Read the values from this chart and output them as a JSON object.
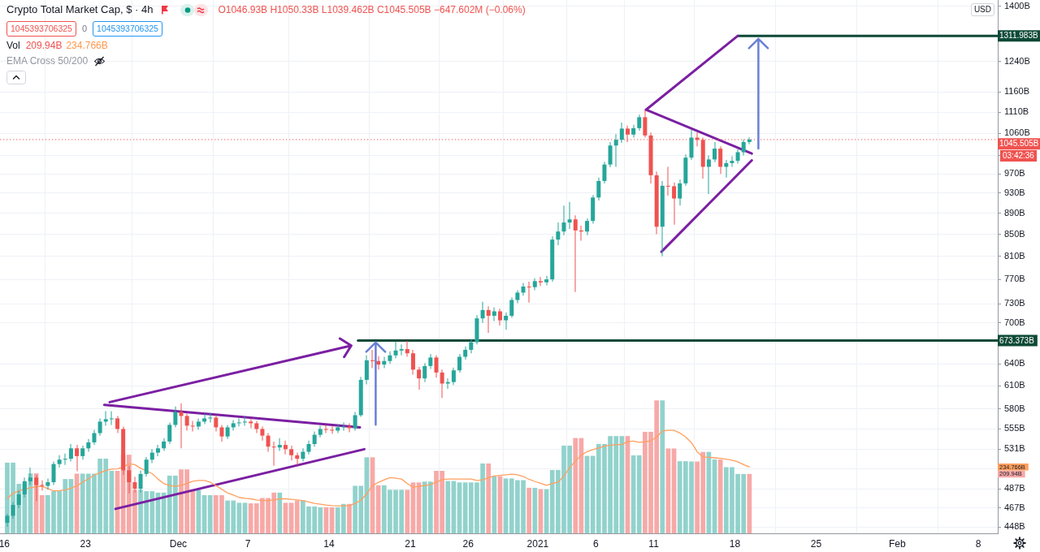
{
  "chart_data": {
    "type": "candlestick",
    "title": "Crypto Total Market Cap, $ · 4h",
    "subtitle": "O1046.93B H1050.33B L1039.462B C1045.505B −647.602M (−0.06%)",
    "x": [
      "2020-11-16T06:00",
      "2020-11-16T18:00",
      "2020-11-17T06:00",
      "2020-11-17T18:00",
      "2020-11-18T06:00",
      "2020-11-18T18:00",
      "2020-11-19T06:00",
      "2020-11-19T18:00",
      "2020-11-20T06:00",
      "2020-11-20T18:00",
      "2020-11-21T06:00",
      "2020-11-21T18:00",
      "2020-11-22T06:00",
      "2020-11-22T18:00",
      "2020-11-23T06:00",
      "2020-11-23T18:00",
      "2020-11-24T06:00",
      "2020-11-24T18:00",
      "2020-11-25T06:00",
      "2020-11-25T18:00",
      "2020-11-26T06:00",
      "2020-11-26T18:00",
      "2020-11-27T06:00",
      "2020-11-27T18:00",
      "2020-11-28T06:00",
      "2020-11-28T18:00",
      "2020-11-29T06:00",
      "2020-11-29T18:00",
      "2020-11-30T06:00",
      "2020-11-30T18:00",
      "2020-12-01T06:00",
      "2020-12-01T18:00",
      "2020-12-02T06:00",
      "2020-12-02T18:00",
      "2020-12-03T06:00",
      "2020-12-03T18:00",
      "2020-12-04T06:00",
      "2020-12-04T18:00",
      "2020-12-05T06:00",
      "2020-12-05T18:00",
      "2020-12-06T06:00",
      "2020-12-06T18:00",
      "2020-12-07T06:00",
      "2020-12-07T18:00",
      "2020-12-08T06:00",
      "2020-12-08T18:00",
      "2020-12-09T06:00",
      "2020-12-09T18:00",
      "2020-12-10T06:00",
      "2020-12-10T18:00",
      "2020-12-11T06:00",
      "2020-12-11T18:00",
      "2020-12-12T06:00",
      "2020-12-12T18:00",
      "2020-12-13T06:00",
      "2020-12-13T18:00",
      "2020-12-14T06:00",
      "2020-12-14T18:00",
      "2020-12-15T06:00",
      "2020-12-15T18:00",
      "2020-12-16T06:00",
      "2020-12-16T18:00",
      "2020-12-17T06:00",
      "2020-12-17T18:00",
      "2020-12-18T06:00",
      "2020-12-18T18:00",
      "2020-12-19T06:00",
      "2020-12-19T18:00",
      "2020-12-20T06:00",
      "2020-12-20T18:00",
      "2020-12-21T06:00",
      "2020-12-21T18:00",
      "2020-12-22T06:00",
      "2020-12-22T18:00",
      "2020-12-23T06:00",
      "2020-12-23T18:00",
      "2020-12-24T06:00",
      "2020-12-24T18:00",
      "2020-12-25T06:00",
      "2020-12-25T18:00",
      "2020-12-26T06:00",
      "2020-12-26T18:00",
      "2020-12-27T06:00",
      "2020-12-27T18:00",
      "2020-12-28T06:00",
      "2020-12-28T18:00",
      "2020-12-29T06:00",
      "2020-12-29T18:00",
      "2020-12-30T06:00",
      "2020-12-30T18:00",
      "2020-12-31T06:00",
      "2020-12-31T18:00",
      "2021-01-01T06:00",
      "2021-01-01T18:00",
      "2021-01-02T06:00",
      "2021-01-02T18:00",
      "2021-01-03T06:00",
      "2021-01-03T18:00",
      "2021-01-04T06:00",
      "2021-01-04T18:00",
      "2021-01-05T06:00",
      "2021-01-05T18:00",
      "2021-01-06T06:00",
      "2021-01-06T18:00",
      "2021-01-07T06:00",
      "2021-01-07T18:00",
      "2021-01-08T06:00",
      "2021-01-08T18:00",
      "2021-01-09T06:00",
      "2021-01-09T18:00",
      "2021-01-10T06:00",
      "2021-01-10T18:00",
      "2021-01-11T06:00",
      "2021-01-11T18:00",
      "2021-01-12T06:00",
      "2021-01-12T18:00",
      "2021-01-13T06:00",
      "2021-01-13T18:00",
      "2021-01-14T06:00",
      "2021-01-14T18:00",
      "2021-01-15T06:00",
      "2021-01-15T18:00",
      "2021-01-16T06:00",
      "2021-01-16T18:00",
      "2021-01-17T06:00",
      "2021-01-17T18:00",
      "2021-01-18T06:00",
      "2021-01-18T18:00",
      "2021-01-19T06:00"
    ],
    "xlim": [
      "2020-11-15T15:00",
      "2021-02-09T16:00"
    ],
    "xticks": [
      {
        "value": "2020-11-16",
        "label": "16"
      },
      {
        "value": "2020-11-23",
        "label": "23"
      },
      {
        "value": "2020-12-01",
        "label": "Dec"
      },
      {
        "value": "2020-12-07",
        "label": "7"
      },
      {
        "value": "2020-12-14",
        "label": "14"
      },
      {
        "value": "2020-12-21",
        "label": "21"
      },
      {
        "value": "2020-12-26",
        "label": "26"
      },
      {
        "value": "2021-01-01",
        "label": "2021"
      },
      {
        "value": "2021-01-06",
        "label": "6"
      },
      {
        "value": "2021-01-11",
        "label": "11"
      },
      {
        "value": "2021-01-18",
        "label": "18"
      },
      {
        "value": "2021-01-25",
        "label": "25"
      },
      {
        "value": "2021-02-01",
        "label": "Feb"
      },
      {
        "value": "2021-02-08",
        "label": "8"
      }
    ],
    "ylim": [
      441.7,
      1419
    ],
    "yticks": [
      {
        "value": 448,
        "label": "448B"
      },
      {
        "value": 467,
        "label": "467B"
      },
      {
        "value": 487,
        "label": "487B"
      },
      {
        "value": 509,
        "label": null
      },
      {
        "value": 531,
        "label": "531B"
      },
      {
        "value": 555,
        "label": "555B"
      },
      {
        "value": 580,
        "label": "580B"
      },
      {
        "value": 610,
        "label": "610B"
      },
      {
        "value": 640,
        "label": "640B"
      },
      {
        "value": 700,
        "label": "700B"
      },
      {
        "value": 730,
        "label": "730B"
      },
      {
        "value": 770,
        "label": "770B"
      },
      {
        "value": 810,
        "label": "810B"
      },
      {
        "value": 850,
        "label": "850B"
      },
      {
        "value": 890,
        "label": "890B"
      },
      {
        "value": 930,
        "label": "930B"
      },
      {
        "value": 970,
        "label": "970B"
      },
      {
        "value": 1010,
        "label": null
      },
      {
        "value": 1060,
        "label": "1060B"
      },
      {
        "value": 1110,
        "label": "1110B"
      },
      {
        "value": 1160,
        "label": "1160B"
      },
      {
        "value": 1240,
        "label": "1240B"
      },
      {
        "value": 1400,
        "label": "1400B"
      }
    ],
    "y2lim": [
      0,
      1886
    ],
    "y2ticks": [
      {
        "value": 209.94,
        "label": "209.94B"
      },
      {
        "value": 234.766,
        "label": "234.766B"
      }
    ],
    "log": true,
    "grid": true,
    "series": [
      {
        "ohlc": [
          [
            452,
            461,
            448,
            459
          ],
          [
            459,
            473,
            456,
            470
          ],
          [
            470,
            485,
            467,
            481
          ],
          [
            481,
            499,
            478,
            495
          ],
          [
            495,
            510,
            491,
            499
          ],
          [
            499,
            502,
            474,
            491
          ],
          [
            491,
            496,
            485,
            490
          ],
          [
            490,
            498,
            486,
            494
          ],
          [
            494,
            517,
            491,
            514
          ],
          [
            514,
            524,
            510,
            519
          ],
          [
            519,
            526,
            513,
            520
          ],
          [
            520,
            537,
            517,
            532
          ],
          [
            532,
            536,
            506,
            523
          ],
          [
            523,
            535,
            519,
            532
          ],
          [
            532,
            543,
            528,
            539
          ],
          [
            539,
            554,
            536,
            550
          ],
          [
            550,
            568,
            547,
            564
          ],
          [
            564,
            577,
            559,
            567
          ],
          [
            567,
            577,
            560,
            568
          ],
          [
            568,
            571,
            550,
            555
          ],
          [
            555,
            558,
            502,
            507
          ],
          [
            507,
            512,
            482,
            494
          ],
          [
            494,
            500,
            483,
            487
          ],
          [
            487,
            507,
            483,
            503
          ],
          [
            503,
            522,
            500,
            519
          ],
          [
            519,
            531,
            515,
            527
          ],
          [
            527,
            536,
            523,
            532
          ],
          [
            532,
            544,
            529,
            540
          ],
          [
            540,
            563,
            537,
            560
          ],
          [
            560,
            583,
            557,
            576
          ],
          [
            576,
            587,
            532,
            571
          ],
          [
            571,
            574,
            553,
            559
          ],
          [
            559,
            565,
            552,
            558
          ],
          [
            558,
            568,
            554,
            564
          ],
          [
            564,
            574,
            561,
            568
          ],
          [
            568,
            575,
            563,
            569
          ],
          [
            569,
            572,
            552,
            557
          ],
          [
            557,
            560,
            540,
            546
          ],
          [
            546,
            560,
            543,
            557
          ],
          [
            557,
            566,
            553,
            562
          ],
          [
            562,
            568,
            558,
            563
          ],
          [
            563,
            570,
            559,
            564
          ],
          [
            564,
            568,
            556,
            562
          ],
          [
            562,
            565,
            550,
            555
          ],
          [
            555,
            558,
            541,
            547
          ],
          [
            547,
            550,
            528,
            534
          ],
          [
            534,
            540,
            512,
            533
          ],
          [
            533,
            544,
            529,
            536
          ],
          [
            536,
            541,
            525,
            531
          ],
          [
            531,
            535,
            518,
            524
          ],
          [
            524,
            527,
            513,
            520
          ],
          [
            520,
            532,
            517,
            528
          ],
          [
            528,
            541,
            525,
            537
          ],
          [
            537,
            552,
            534,
            548
          ],
          [
            548,
            559,
            545,
            555
          ],
          [
            555,
            560,
            550,
            554
          ],
          [
            554,
            559,
            549,
            553
          ],
          [
            553,
            561,
            550,
            557
          ],
          [
            557,
            563,
            553,
            558
          ],
          [
            558,
            562,
            551,
            556
          ],
          [
            556,
            576,
            553,
            572
          ],
          [
            572,
            622,
            570,
            618
          ],
          [
            618,
            652,
            612,
            645
          ],
          [
            645,
            660,
            634,
            644
          ],
          [
            644,
            651,
            632,
            639
          ],
          [
            639,
            650,
            634,
            644
          ],
          [
            644,
            658,
            640,
            652
          ],
          [
            652,
            672,
            648,
            659
          ],
          [
            659,
            668,
            652,
            661
          ],
          [
            661,
            673,
            650,
            655
          ],
          [
            655,
            660,
            625,
            632
          ],
          [
            632,
            636,
            605,
            620
          ],
          [
            620,
            641,
            615,
            637
          ],
          [
            637,
            654,
            633,
            649
          ],
          [
            649,
            652,
            621,
            628
          ],
          [
            628,
            632,
            594,
            613
          ],
          [
            613,
            620,
            606,
            615
          ],
          [
            615,
            635,
            611,
            631
          ],
          [
            631,
            654,
            628,
            650
          ],
          [
            650,
            665,
            646,
            660
          ],
          [
            660,
            676,
            655,
            671
          ],
          [
            671,
            712,
            668,
            707
          ],
          [
            707,
            733,
            700,
            720
          ],
          [
            720,
            726,
            685,
            711
          ],
          [
            711,
            724,
            703,
            718
          ],
          [
            718,
            722,
            696,
            704
          ],
          [
            704,
            716,
            690,
            711
          ],
          [
            711,
            740,
            708,
            736
          ],
          [
            736,
            752,
            731,
            748
          ],
          [
            748,
            764,
            743,
            758
          ],
          [
            758,
            766,
            732,
            757
          ],
          [
            757,
            772,
            752,
            767
          ],
          [
            767,
            774,
            759,
            765
          ],
          [
            765,
            776,
            760,
            770
          ],
          [
            770,
            846,
            766,
            840
          ],
          [
            840,
            872,
            830,
            855
          ],
          [
            855,
            905,
            848,
            872
          ],
          [
            872,
            912,
            860,
            878
          ],
          [
            878,
            886,
            749,
            857
          ],
          [
            857,
            866,
            838,
            855
          ],
          [
            855,
            880,
            848,
            875
          ],
          [
            875,
            926,
            870,
            921
          ],
          [
            921,
            962,
            915,
            955
          ],
          [
            955,
            996,
            950,
            990
          ],
          [
            990,
            1040,
            984,
            1032
          ],
          [
            1032,
            1058,
            985,
            1045
          ],
          [
            1045,
            1085,
            1038,
            1071
          ],
          [
            1071,
            1078,
            1040,
            1057
          ],
          [
            1057,
            1080,
            1050,
            1072
          ],
          [
            1072,
            1104,
            1066,
            1098
          ],
          [
            1098,
            1116,
            1050,
            1055
          ],
          [
            1055,
            1062,
            950,
            967
          ],
          [
            967,
            975,
            850,
            864
          ],
          [
            864,
            955,
            810,
            945
          ],
          [
            945,
            985,
            925,
            944
          ],
          [
            944,
            952,
            868,
            919
          ],
          [
            919,
            958,
            905,
            950
          ],
          [
            950,
            1012,
            945,
            1005
          ],
          [
            1005,
            1068,
            1000,
            1050
          ],
          [
            1050,
            1062,
            1030,
            1045
          ],
          [
            1045,
            1050,
            960,
            985
          ],
          [
            985,
            1010,
            928,
            1001
          ],
          [
            1001,
            1040,
            995,
            1025
          ],
          [
            1025,
            1030,
            970,
            985
          ],
          [
            985,
            1000,
            962,
            993
          ],
          [
            993,
            1008,
            985,
            998
          ],
          [
            998,
            1024,
            992,
            1017
          ],
          [
            1017,
            1046,
            1010,
            1040
          ],
          [
            1040,
            1050.33,
            1035,
            1045.505
          ]
        ],
        "colors": [
          "#26a69a",
          "#26a69a",
          "#26a69a",
          "#26a69a",
          "#26a69a",
          "#ef5350",
          "#ef5350",
          "#26a69a",
          "#26a69a",
          "#26a69a",
          "#26a69a",
          "#26a69a",
          "#ef5350",
          "#26a69a",
          "#26a69a",
          "#26a69a",
          "#26a69a",
          "#26a69a",
          "#26a69a",
          "#ef5350",
          "#ef5350",
          "#ef5350",
          "#ef5350",
          "#26a69a",
          "#26a69a",
          "#26a69a",
          "#26a69a",
          "#26a69a",
          "#26a69a",
          "#26a69a",
          "#ef5350",
          "#ef5350",
          "#ef5350",
          "#26a69a",
          "#26a69a",
          "#26a69a",
          "#ef5350",
          "#ef5350",
          "#26a69a",
          "#26a69a",
          "#26a69a",
          "#26a69a",
          "#ef5350",
          "#ef5350",
          "#ef5350",
          "#ef5350",
          "#ef5350",
          "#26a69a",
          "#ef5350",
          "#ef5350",
          "#ef5350",
          "#26a69a",
          "#26a69a",
          "#26a69a",
          "#26a69a",
          "#ef5350",
          "#ef5350",
          "#26a69a",
          "#26a69a",
          "#ef5350",
          "#26a69a",
          "#26a69a",
          "#26a69a",
          "#ef5350",
          "#ef5350",
          "#26a69a",
          "#26a69a",
          "#26a69a",
          "#26a69a",
          "#ef5350",
          "#ef5350",
          "#ef5350",
          "#26a69a",
          "#26a69a",
          "#ef5350",
          "#ef5350",
          "#26a69a",
          "#26a69a",
          "#26a69a",
          "#26a69a",
          "#26a69a",
          "#26a69a",
          "#26a69a",
          "#ef5350",
          "#26a69a",
          "#ef5350",
          "#26a69a",
          "#26a69a",
          "#26a69a",
          "#26a69a",
          "#ef5350",
          "#26a69a",
          "#ef5350",
          "#26a69a",
          "#26a69a",
          "#26a69a",
          "#26a69a",
          "#26a69a",
          "#ef5350",
          "#ef5350",
          "#26a69a",
          "#26a69a",
          "#26a69a",
          "#26a69a",
          "#26a69a",
          "#26a69a",
          "#26a69a",
          "#ef5350",
          "#26a69a",
          "#26a69a",
          "#ef5350",
          "#ef5350",
          "#ef5350",
          "#26a69a",
          "#ef5350",
          "#ef5350",
          "#26a69a",
          "#26a69a",
          "#26a69a",
          "#ef5350",
          "#ef5350",
          "#26a69a",
          "#26a69a",
          "#ef5350",
          "#26a69a",
          "#26a69a",
          "#26a69a",
          "#26a69a",
          "#26a69a"
        ]
      },
      {
        "type": "bar",
        "axis": "y2",
        "values": [
          250,
          250,
          175,
          175,
          212,
          212,
          135,
          135,
          149,
          149,
          192,
          192,
          211,
          211,
          211,
          211,
          264,
          264,
          221,
          221,
          278,
          278,
          154,
          154,
          149,
          149,
          144,
          144,
          204,
          204,
          226,
          226,
          154,
          154,
          135,
          135,
          135,
          135,
          116,
          116,
          108,
          108,
          106,
          106,
          125,
          125,
          144,
          144,
          108,
          108,
          116,
          116,
          95,
          95,
          92,
          92,
          92,
          92,
          104,
          104,
          168,
          168,
          269,
          269,
          170,
          170,
          154,
          154,
          154,
          154,
          180,
          180,
          183,
          183,
          221,
          221,
          185,
          185,
          180,
          180,
          180,
          180,
          247,
          247,
          202,
          202,
          194,
          194,
          188,
          188,
          161,
          161,
          156,
          156,
          224,
          224,
          310,
          310,
          337,
          337,
          274,
          274,
          316,
          316,
          344,
          344,
          344,
          344,
          276,
          276,
          359,
          359,
          470,
          470,
          300,
          300,
          255,
          255,
          254,
          254,
          288,
          288,
          261,
          261,
          234,
          234,
          210,
          210,
          209.94
        ],
        "colors": [
          "#92d2cc",
          "#92d2cc",
          "#92d2cc",
          "#92d2cc",
          "#92d2cc",
          "#f7a9a7",
          "#f7a9a7",
          "#92d2cc",
          "#92d2cc",
          "#92d2cc",
          "#92d2cc",
          "#92d2cc",
          "#f7a9a7",
          "#92d2cc",
          "#92d2cc",
          "#92d2cc",
          "#92d2cc",
          "#92d2cc",
          "#92d2cc",
          "#f7a9a7",
          "#f7a9a7",
          "#f7a9a7",
          "#f7a9a7",
          "#92d2cc",
          "#92d2cc",
          "#92d2cc",
          "#92d2cc",
          "#92d2cc",
          "#92d2cc",
          "#92d2cc",
          "#f7a9a7",
          "#f7a9a7",
          "#f7a9a7",
          "#92d2cc",
          "#92d2cc",
          "#92d2cc",
          "#f7a9a7",
          "#f7a9a7",
          "#92d2cc",
          "#92d2cc",
          "#92d2cc",
          "#92d2cc",
          "#f7a9a7",
          "#f7a9a7",
          "#f7a9a7",
          "#f7a9a7",
          "#f7a9a7",
          "#92d2cc",
          "#f7a9a7",
          "#f7a9a7",
          "#f7a9a7",
          "#92d2cc",
          "#92d2cc",
          "#92d2cc",
          "#92d2cc",
          "#f7a9a7",
          "#f7a9a7",
          "#92d2cc",
          "#92d2cc",
          "#f7a9a7",
          "#92d2cc",
          "#92d2cc",
          "#92d2cc",
          "#f7a9a7",
          "#f7a9a7",
          "#92d2cc",
          "#92d2cc",
          "#92d2cc",
          "#92d2cc",
          "#f7a9a7",
          "#f7a9a7",
          "#f7a9a7",
          "#92d2cc",
          "#92d2cc",
          "#f7a9a7",
          "#f7a9a7",
          "#92d2cc",
          "#92d2cc",
          "#92d2cc",
          "#92d2cc",
          "#92d2cc",
          "#92d2cc",
          "#92d2cc",
          "#f7a9a7",
          "#92d2cc",
          "#f7a9a7",
          "#92d2cc",
          "#92d2cc",
          "#92d2cc",
          "#92d2cc",
          "#f7a9a7",
          "#92d2cc",
          "#f7a9a7",
          "#92d2cc",
          "#92d2cc",
          "#92d2cc",
          "#92d2cc",
          "#92d2cc",
          "#f7a9a7",
          "#f7a9a7",
          "#92d2cc",
          "#92d2cc",
          "#92d2cc",
          "#92d2cc",
          "#92d2cc",
          "#92d2cc",
          "#92d2cc",
          "#f7a9a7",
          "#92d2cc",
          "#92d2cc",
          "#f7a9a7",
          "#f7a9a7",
          "#f7a9a7",
          "#92d2cc",
          "#f7a9a7",
          "#f7a9a7",
          "#92d2cc",
          "#92d2cc",
          "#92d2cc",
          "#f7a9a7",
          "#f7a9a7",
          "#92d2cc",
          "#92d2cc",
          "#f7a9a7",
          "#92d2cc",
          "#92d2cc",
          "#92d2cc",
          "#92d2cc",
          "#f7a9a7"
        ]
      },
      {
        "type": "line",
        "axis": "y2",
        "color": "#ff9f5e",
        "values": [
          123,
          142,
          150,
          156,
          161,
          165,
          166,
          158,
          150,
          151,
          153,
          160,
          168,
          181,
          193,
          206,
          214,
          222,
          227,
          228,
          235,
          246,
          243,
          230,
          221,
          211,
          192,
          176,
          169,
          166,
          170,
          176,
          184,
          187,
          187,
          181,
          169,
          156,
          143,
          135,
          127,
          124,
          122,
          118,
          116,
          116,
          118,
          122,
          122,
          120,
          118,
          116,
          111,
          106,
          103,
          100,
          98,
          97,
          97,
          98,
          106,
          117,
          140,
          169,
          180,
          189,
          197,
          195,
          192,
          176,
          163,
          166,
          169,
          172,
          181,
          190,
          192,
          192,
          192,
          192,
          192,
          187,
          189,
          197,
          203,
          205,
          207,
          209,
          207,
          201,
          191,
          183,
          177,
          170,
          176,
          181,
          202,
          232,
          256,
          276,
          289,
          296,
          302,
          308,
          312,
          313,
          314,
          324,
          326,
          322,
          324,
          327,
          341,
          362,
          364,
          364,
          355,
          341,
          321,
          288,
          270,
          269,
          267,
          265,
          262,
          259,
          253,
          243,
          234.766
        ]
      },
      {
        "type": "line",
        "color": "#7b1fa2",
        "x": [
          "2020-11-24T15:00",
          "2020-12-16T16:00"
        ],
        "values": [
          585,
          557
        ]
      },
      {
        "type": "line",
        "color": "#7b1fa2",
        "x": [
          "2020-11-25T14:00",
          "2020-12-17T01:00"
        ],
        "values": [
          466,
          531
        ]
      },
      {
        "type": "line",
        "color": "#7b1fa2",
        "x": [
          "2021-01-10T08:00",
          "2021-01-19T11:00"
        ],
        "values": [
          1116,
          1014
        ]
      },
      {
        "type": "line",
        "color": "#7b1fa2",
        "x": [
          "2021-01-11T16:00",
          "2021-01-19T11:00"
        ],
        "values": [
          818,
          999
        ]
      },
      {
        "type": "line",
        "color": "#7b1fa2",
        "x": [
          "2021-01-10T08:00",
          "2021-01-18T06:00"
        ],
        "values": [
          1116,
          1312
        ]
      },
      {
        "type": "line",
        "color": "#0e4a37",
        "x": [
          "2020-12-16T12:00",
          "2021-02-09T16:00"
        ],
        "values": [
          673.373,
          673.373
        ],
        "value_labels": [
          null,
          "673.373B"
        ]
      },
      {
        "type": "line",
        "color": "#0e4a37",
        "x": [
          "2021-01-18T06:00",
          "2021-02-09T16:00"
        ],
        "values": [
          1311.983,
          1311.983
        ],
        "value_labels": [
          null,
          "1311.983B"
        ]
      }
    ],
    "ref_lines": [
      {
        "axis": "y",
        "value": 1045.505,
        "label": "1045.505B",
        "color": "#ef5350",
        "line_style": "dotted"
      }
    ],
    "annotations": [
      "1045393706325",
      "0",
      "1045393706325",
      "Vol",
      "209.94B",
      "234.766B",
      "EMA Cross 50/200",
      "USD",
      "03:42:36"
    ]
  }
}
